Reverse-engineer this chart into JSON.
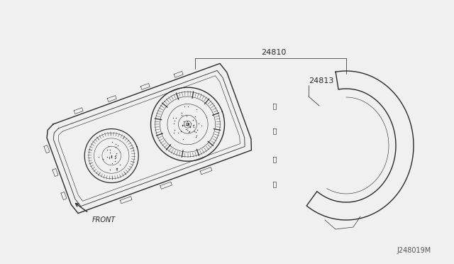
{
  "bg_color": "#f0f0f0",
  "line_color": "#2a2a2a",
  "part_label_24810": "24810",
  "part_label_24813": "24813",
  "front_label": "FRONT",
  "ref_label": "J248019M",
  "lw": 1.0,
  "thin_lw": 0.6,
  "annotation_color": "#2a2a2a",
  "font_size_part": 8,
  "font_size_ref": 7,
  "font_size_front": 7
}
